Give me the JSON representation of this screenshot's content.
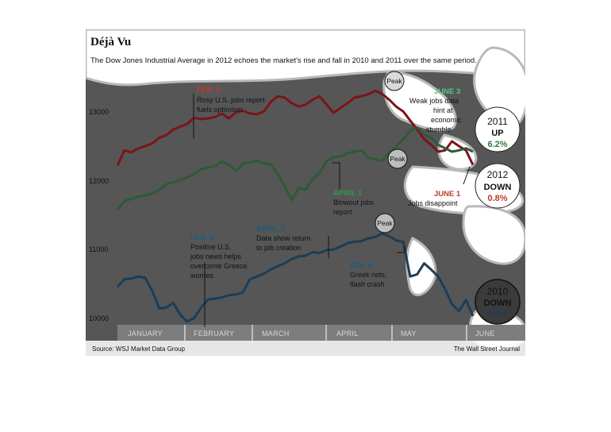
{
  "chart_data": {
    "type": "line",
    "title": "Déjà Vu",
    "subtitle": "The Dow Jones Industrial Average in 2012 echoes the market's rise and fall in 2010 and 2011 over the same period.",
    "months": [
      "JANUARY",
      "FEBRUARY",
      "MARCH",
      "APRIL",
      "MAY",
      "JUNE"
    ],
    "y_ticks": [
      "13000",
      "12000",
      "11000",
      "10000"
    ],
    "ylim": [
      9800,
      13500
    ],
    "grid": false,
    "source": "Source: WSJ Market Data Group",
    "credit": "The Wall Street Journal",
    "series": [
      {
        "color": "#7b1518",
        "points": [
          [
            1,
            12200
          ],
          [
            2,
            12420
          ],
          [
            3,
            12390
          ],
          [
            4,
            12450
          ],
          [
            5,
            12480
          ],
          [
            6,
            12520
          ],
          [
            7,
            12600
          ],
          [
            8,
            12640
          ],
          [
            9,
            12720
          ],
          [
            10,
            12760
          ],
          [
            11,
            12800
          ],
          [
            12,
            12890
          ],
          [
            13,
            12870
          ],
          [
            14,
            12880
          ],
          [
            15,
            12900
          ],
          [
            16,
            12950
          ],
          [
            17,
            12880
          ],
          [
            18,
            12970
          ],
          [
            19,
            12990
          ],
          [
            20,
            12950
          ],
          [
            21,
            12940
          ],
          [
            22,
            12980
          ],
          [
            23,
            13120
          ],
          [
            24,
            13200
          ],
          [
            25,
            13180
          ],
          [
            26,
            13100
          ],
          [
            27,
            13050
          ],
          [
            28,
            13080
          ],
          [
            29,
            13150
          ],
          [
            30,
            13200
          ],
          [
            31,
            13080
          ],
          [
            32,
            12960
          ],
          [
            33,
            13030
          ],
          [
            34,
            13100
          ],
          [
            35,
            13180
          ],
          [
            36,
            13200
          ],
          [
            37,
            13230
          ],
          [
            38,
            13280
          ],
          [
            39,
            13230
          ],
          [
            40,
            13150
          ],
          [
            41,
            13050
          ],
          [
            42,
            12980
          ],
          [
            43,
            12850
          ],
          [
            44,
            12720
          ],
          [
            45,
            12580
          ],
          [
            46,
            12500
          ],
          [
            47,
            12400
          ],
          [
            48,
            12420
          ],
          [
            49,
            12550
          ],
          [
            50,
            12480
          ],
          [
            51,
            12420
          ],
          [
            52,
            12210
          ]
        ]
      },
      {
        "color": "#2e5a36",
        "points": [
          [
            1,
            11560
          ],
          [
            2,
            11690
          ],
          [
            3,
            11720
          ],
          [
            4,
            11750
          ],
          [
            5,
            11770
          ],
          [
            6,
            11800
          ],
          [
            7,
            11850
          ],
          [
            8,
            11930
          ],
          [
            9,
            11960
          ],
          [
            10,
            11990
          ],
          [
            11,
            12030
          ],
          [
            12,
            12080
          ],
          [
            13,
            12150
          ],
          [
            14,
            12170
          ],
          [
            15,
            12190
          ],
          [
            16,
            12260
          ],
          [
            17,
            12210
          ],
          [
            18,
            12120
          ],
          [
            19,
            12230
          ],
          [
            20,
            12240
          ],
          [
            21,
            12270
          ],
          [
            22,
            12230
          ],
          [
            23,
            12220
          ],
          [
            24,
            12080
          ],
          [
            25,
            11900
          ],
          [
            26,
            11700
          ],
          [
            27,
            11880
          ],
          [
            28,
            11850
          ],
          [
            29,
            12010
          ],
          [
            30,
            12090
          ],
          [
            31,
            12260
          ],
          [
            32,
            12320
          ],
          [
            33,
            12330
          ],
          [
            34,
            12380
          ],
          [
            35,
            12400
          ],
          [
            36,
            12420
          ],
          [
            37,
            12310
          ],
          [
            38,
            12290
          ],
          [
            39,
            12270
          ],
          [
            40,
            12390
          ],
          [
            41,
            12480
          ],
          [
            42,
            12580
          ],
          [
            43,
            12700
          ],
          [
            44,
            12750
          ],
          [
            45,
            12650
          ],
          [
            46,
            12600
          ],
          [
            47,
            12500
          ],
          [
            48,
            12450
          ],
          [
            49,
            12400
          ],
          [
            50,
            12420
          ],
          [
            51,
            12450
          ],
          [
            52,
            12400
          ]
        ]
      },
      {
        "color": "#1c3d57",
        "points": [
          [
            1,
            10450
          ],
          [
            2,
            10560
          ],
          [
            3,
            10570
          ],
          [
            4,
            10600
          ],
          [
            5,
            10580
          ],
          [
            6,
            10390
          ],
          [
            7,
            10140
          ],
          [
            8,
            10150
          ],
          [
            9,
            10220
          ],
          [
            10,
            10050
          ],
          [
            11,
            9950
          ],
          [
            12,
            10000
          ],
          [
            13,
            10150
          ],
          [
            14,
            10270
          ],
          [
            15,
            10280
          ],
          [
            16,
            10300
          ],
          [
            17,
            10330
          ],
          [
            18,
            10340
          ],
          [
            19,
            10370
          ],
          [
            20,
            10560
          ],
          [
            21,
            10600
          ],
          [
            22,
            10640
          ],
          [
            23,
            10700
          ],
          [
            24,
            10750
          ],
          [
            25,
            10790
          ],
          [
            26,
            10850
          ],
          [
            27,
            10890
          ],
          [
            28,
            10900
          ],
          [
            29,
            10950
          ],
          [
            30,
            10940
          ],
          [
            31,
            10980
          ],
          [
            32,
            10990
          ],
          [
            33,
            11030
          ],
          [
            34,
            11080
          ],
          [
            35,
            11100
          ],
          [
            36,
            11110
          ],
          [
            37,
            11150
          ],
          [
            38,
            11170
          ],
          [
            39,
            11220
          ],
          [
            40,
            11180
          ],
          [
            41,
            11120
          ],
          [
            42,
            11100
          ],
          [
            43,
            10600
          ],
          [
            44,
            10630
          ],
          [
            45,
            10790
          ],
          [
            46,
            10700
          ],
          [
            47,
            10600
          ],
          [
            48,
            10420
          ],
          [
            49,
            10200
          ],
          [
            50,
            10100
          ],
          [
            51,
            10260
          ],
          [
            52,
            10030
          ]
        ]
      }
    ]
  },
  "annotations": {
    "feb3_2012": {
      "head": "FEB. 3",
      "lines": [
        "Rosy U.S. jobs report",
        "fuels optimism"
      ]
    },
    "june3_2011": {
      "head": "JUNE 3",
      "lines": [
        "Weak jobs data",
        "hint at",
        "economic",
        "stumble"
      ]
    },
    "april1_2011": {
      "head": "APRIL 1",
      "lines": [
        "Blowout jobs",
        "report"
      ]
    },
    "june1_2012": {
      "head": "JUNE 1",
      "lines": [
        "Jobs disappoint"
      ]
    },
    "april2_2010": {
      "head": "APRIL 2",
      "lines": [
        "Data show return",
        "to job creation"
      ]
    },
    "feb3_2010": {
      "head": "FEB. 3",
      "lines": [
        "Positive U.S.",
        "jobs news helps",
        "overcome Greece",
        "worries"
      ]
    },
    "may6_2010": {
      "head": "MAY 6",
      "lines": [
        "Greek riots,",
        "flash crash"
      ]
    }
  },
  "peak_label": "Peak",
  "badges": [
    {
      "year": "2011",
      "dir": "UP",
      "pct": "6.2%",
      "pct_color": "#2e7d3a"
    },
    {
      "year": "2012",
      "dir": "DOWN",
      "pct": "0.8%",
      "pct_color": "#c0392b"
    },
    {
      "year": "2010",
      "dir": "DOWN",
      "pct": "5.0%",
      "pct_color": "#1c3d57"
    }
  ],
  "colors": {
    "panel": "#565656",
    "axis_band": "#7d7d7d",
    "red_label": "#c0392b",
    "green_label": "#2e9a4a",
    "green_label_light": "#55c48a",
    "blue_label": "#1f5a82"
  }
}
